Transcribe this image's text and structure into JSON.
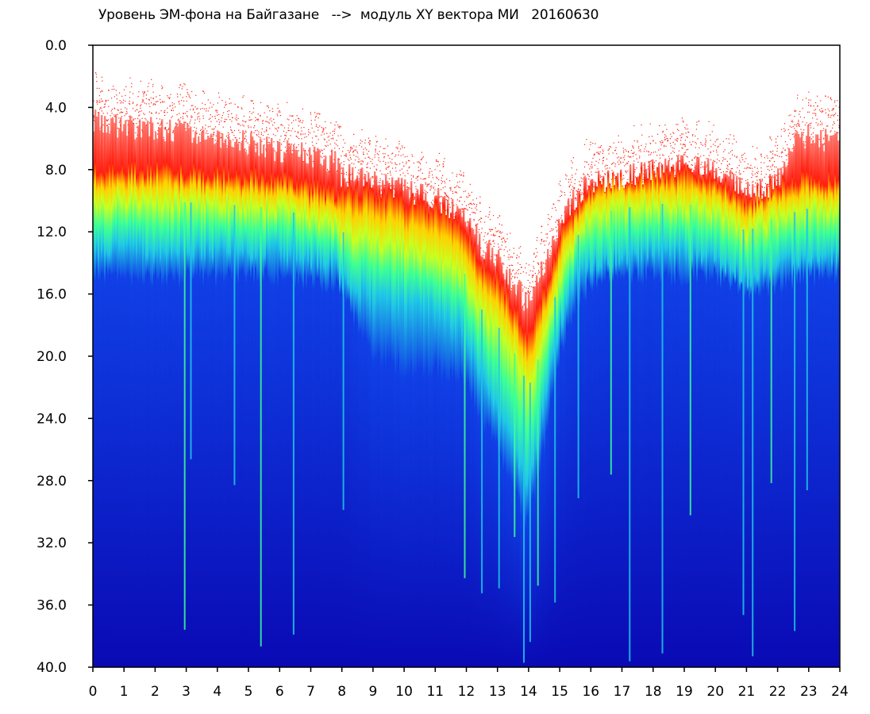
{
  "chart_data": {
    "type": "heatmap",
    "title": "Уровень ЭМ-фона на Байгазане   -->  модуль XY вектора МИ   20160630",
    "x_ticks": [
      "0",
      "1",
      "2",
      "3",
      "4",
      "5",
      "6",
      "7",
      "8",
      "9",
      "10",
      "11",
      "12",
      "13",
      "14",
      "15",
      "16",
      "17",
      "18",
      "19",
      "20",
      "21",
      "22",
      "23",
      "24"
    ],
    "y_ticks": [
      "0.0",
      "4.0",
      "8.0",
      "12.0",
      "16.0",
      "20.0",
      "24.0",
      "28.0",
      "32.0",
      "36.0",
      "40.0"
    ],
    "xlim": [
      0,
      24
    ],
    "ylim": [
      0,
      40
    ],
    "y_axis_inverted": true,
    "grid": false,
    "colormap": [
      "#0a0ab4",
      "#1040e6",
      "#20c8e6",
      "#3cff96",
      "#c8ff20",
      "#ffd000",
      "#ff2010"
    ],
    "background_color": "#ffffff",
    "upper_envelope_level": {
      "hours": [
        0,
        1,
        2,
        3,
        4,
        5,
        6,
        7,
        7.8,
        8,
        9,
        10,
        11,
        11.9,
        12.5,
        13,
        13.6,
        14,
        14.5,
        15,
        15.5,
        16,
        17,
        18,
        19,
        20,
        20.8,
        21,
        21.5,
        22,
        22.5,
        23,
        24
      ],
      "values": [
        4.5,
        5.0,
        5.0,
        5.2,
        5.5,
        6.0,
        6.5,
        6.8,
        7.2,
        8.0,
        8.4,
        9.0,
        9.5,
        10.5,
        12.5,
        13.5,
        15.0,
        16.5,
        14.0,
        11.0,
        9.5,
        8.5,
        8.2,
        7.8,
        7.5,
        7.6,
        8.8,
        9.0,
        9.0,
        8.5,
        6.0,
        5.5,
        6.0
      ]
    },
    "red_zone_level": {
      "hours": [
        0,
        2,
        4,
        6,
        7.8,
        8,
        9,
        10,
        11,
        11.9,
        12.5,
        13,
        13.6,
        14,
        14.5,
        15,
        15.5,
        16,
        17,
        18,
        19,
        20,
        21,
        22,
        23,
        24
      ],
      "values": [
        8.0,
        8.0,
        8.2,
        8.5,
        9.5,
        9.2,
        9.5,
        10.0,
        10.5,
        11.5,
        14.0,
        15.0,
        17.0,
        18.5,
        16.0,
        12.5,
        10.5,
        9.0,
        8.5,
        8.2,
        8.2,
        8.5,
        10.0,
        9.0,
        8.5,
        8.5
      ]
    },
    "green_zone_level": {
      "hours": [
        0,
        2,
        4,
        6,
        7.8,
        8,
        9,
        10,
        11,
        11.9,
        12.5,
        13,
        13.6,
        14,
        14.5,
        15,
        15.5,
        16,
        17,
        18,
        19,
        20,
        21,
        22,
        23,
        24
      ],
      "values": [
        10.0,
        10.0,
        10.2,
        10.5,
        11.5,
        12.0,
        12.5,
        13.0,
        13.5,
        14.5,
        17.0,
        18.0,
        20.0,
        22.0,
        19.0,
        15.0,
        12.5,
        11.0,
        10.5,
        10.2,
        10.2,
        10.5,
        12.0,
        11.0,
        10.5,
        10.5
      ]
    },
    "cyan_zone_level": {
      "hours": [
        0,
        2,
        4,
        6,
        7.8,
        8,
        9,
        10,
        11,
        11.9,
        12.5,
        13,
        13.6,
        14,
        14.5,
        15,
        15.5,
        16,
        17,
        18,
        19,
        20,
        21,
        22,
        23,
        24
      ],
      "values": [
        13.0,
        13.0,
        13.0,
        13.2,
        14.0,
        15.0,
        16.0,
        16.5,
        17.0,
        18.0,
        21.0,
        23.0,
        26.0,
        28.0,
        23.0,
        18.0,
        15.0,
        14.0,
        13.5,
        13.2,
        13.2,
        13.5,
        15.0,
        14.0,
        13.5,
        13.5
      ]
    },
    "dense_blue_level": {
      "hours": [
        0,
        2,
        4,
        6,
        7.8,
        8,
        9,
        10,
        11,
        11.9,
        12.5,
        13,
        13.6,
        14,
        14.5,
        15,
        15.5,
        16,
        17,
        18,
        19,
        20,
        21,
        22,
        23,
        24
      ],
      "values": [
        15.0,
        15.0,
        15.0,
        15.0,
        15.5,
        16.0,
        20.0,
        21.0,
        21.0,
        21.5,
        24.0,
        26.0,
        29.0,
        31.0,
        26.0,
        20.0,
        17.0,
        15.5,
        15.0,
        15.0,
        15.0,
        15.0,
        16.0,
        15.5,
        15.0,
        15.0
      ]
    },
    "spike_hours": [
      2.95,
      3.15,
      4.55,
      5.4,
      6.45,
      8.05,
      11.95,
      12.5,
      13.05,
      13.55,
      13.85,
      14.05,
      14.3,
      14.85,
      15.6,
      16.65,
      17.25,
      18.3,
      19.2,
      20.9,
      21.2,
      21.8,
      22.55,
      22.95
    ]
  }
}
